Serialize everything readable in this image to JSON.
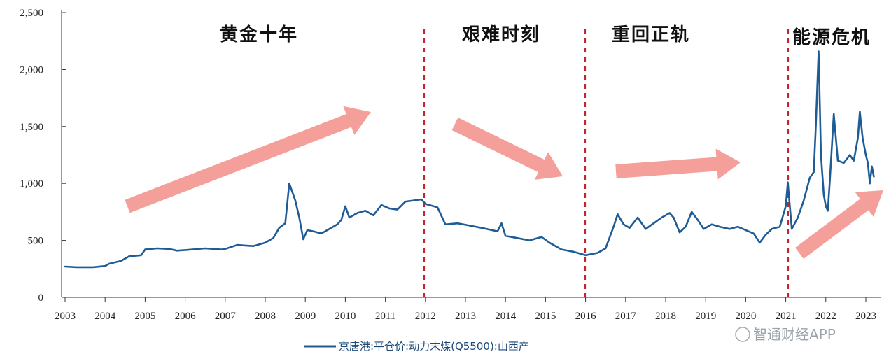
{
  "chart_data": {
    "type": "line",
    "x_ticks": [
      "2003",
      "2004",
      "2005",
      "2006",
      "2007",
      "2008",
      "2009",
      "2010",
      "2011",
      "2012",
      "2013",
      "2014",
      "2015",
      "2016",
      "2017",
      "2018",
      "2019",
      "2020",
      "2021",
      "2022",
      "2023"
    ],
    "y_ticks": [
      "0",
      "500",
      "1,000",
      "1,500",
      "2,000",
      "2,500"
    ],
    "ylim": [
      0,
      2500
    ],
    "xlim": [
      2003,
      2023.3
    ],
    "grid": false,
    "legend_position": "bottom-center",
    "colors": {
      "line": "#1f5c96",
      "divider": "#c0262c",
      "arrow": "#f49a95"
    },
    "period_dividers": [
      2012,
      2016,
      2021
    ],
    "period_labels": [
      "黄金十年",
      "艰难时刻",
      "重回正轨",
      "能源危机"
    ],
    "trend_arrows": [
      "up",
      "down",
      "up",
      "up"
    ],
    "series": [
      {
        "name": "京唐港:平仓价:动力末煤(Q5500):山西产",
        "points": [
          [
            2003.0,
            270
          ],
          [
            2003.3,
            265
          ],
          [
            2003.7,
            265
          ],
          [
            2004.0,
            275
          ],
          [
            2004.1,
            295
          ],
          [
            2004.4,
            320
          ],
          [
            2004.6,
            360
          ],
          [
            2004.9,
            370
          ],
          [
            2005.0,
            420
          ],
          [
            2005.3,
            430
          ],
          [
            2005.6,
            425
          ],
          [
            2005.8,
            410
          ],
          [
            2006.0,
            415
          ],
          [
            2006.5,
            430
          ],
          [
            2006.9,
            420
          ],
          [
            2007.0,
            425
          ],
          [
            2007.3,
            460
          ],
          [
            2007.5,
            455
          ],
          [
            2007.7,
            450
          ],
          [
            2008.0,
            480
          ],
          [
            2008.2,
            520
          ],
          [
            2008.35,
            610
          ],
          [
            2008.5,
            650
          ],
          [
            2008.6,
            1000
          ],
          [
            2008.75,
            850
          ],
          [
            2008.85,
            700
          ],
          [
            2008.95,
            510
          ],
          [
            2009.05,
            590
          ],
          [
            2009.2,
            580
          ],
          [
            2009.4,
            560
          ],
          [
            2009.6,
            600
          ],
          [
            2009.8,
            640
          ],
          [
            2009.9,
            680
          ],
          [
            2010.0,
            800
          ],
          [
            2010.1,
            700
          ],
          [
            2010.3,
            740
          ],
          [
            2010.5,
            760
          ],
          [
            2010.7,
            720
          ],
          [
            2010.9,
            810
          ],
          [
            2011.1,
            780
          ],
          [
            2011.3,
            770
          ],
          [
            2011.5,
            840
          ],
          [
            2011.7,
            850
          ],
          [
            2011.9,
            860
          ],
          [
            2012.0,
            820
          ],
          [
            2012.3,
            790
          ],
          [
            2012.5,
            640
          ],
          [
            2012.8,
            650
          ],
          [
            2013.1,
            630
          ],
          [
            2013.4,
            610
          ],
          [
            2013.8,
            580
          ],
          [
            2013.9,
            650
          ],
          [
            2014.0,
            540
          ],
          [
            2014.3,
            520
          ],
          [
            2014.6,
            500
          ],
          [
            2014.9,
            530
          ],
          [
            2015.1,
            480
          ],
          [
            2015.4,
            420
          ],
          [
            2015.7,
            400
          ],
          [
            2016.0,
            370
          ],
          [
            2016.3,
            390
          ],
          [
            2016.5,
            430
          ],
          [
            2016.7,
            620
          ],
          [
            2016.8,
            730
          ],
          [
            2016.95,
            640
          ],
          [
            2017.1,
            610
          ],
          [
            2017.3,
            700
          ],
          [
            2017.5,
            600
          ],
          [
            2017.7,
            650
          ],
          [
            2017.9,
            700
          ],
          [
            2018.1,
            740
          ],
          [
            2018.2,
            700
          ],
          [
            2018.35,
            570
          ],
          [
            2018.5,
            620
          ],
          [
            2018.65,
            750
          ],
          [
            2018.8,
            680
          ],
          [
            2018.95,
            600
          ],
          [
            2019.15,
            640
          ],
          [
            2019.35,
            620
          ],
          [
            2019.6,
            600
          ],
          [
            2019.8,
            620
          ],
          [
            2020.0,
            590
          ],
          [
            2020.2,
            560
          ],
          [
            2020.35,
            480
          ],
          [
            2020.5,
            550
          ],
          [
            2020.65,
            600
          ],
          [
            2020.85,
            620
          ],
          [
            2021.0,
            800
          ],
          [
            2021.05,
            1010
          ],
          [
            2021.15,
            600
          ],
          [
            2021.3,
            700
          ],
          [
            2021.45,
            850
          ],
          [
            2021.6,
            1050
          ],
          [
            2021.7,
            1100
          ],
          [
            2021.75,
            1500
          ],
          [
            2021.82,
            2160
          ],
          [
            2021.88,
            1250
          ],
          [
            2021.95,
            900
          ],
          [
            2022.0,
            800
          ],
          [
            2022.05,
            760
          ],
          [
            2022.1,
            1020
          ],
          [
            2022.2,
            1610
          ],
          [
            2022.3,
            1200
          ],
          [
            2022.45,
            1180
          ],
          [
            2022.6,
            1250
          ],
          [
            2022.7,
            1200
          ],
          [
            2022.8,
            1400
          ],
          [
            2022.85,
            1630
          ],
          [
            2022.92,
            1400
          ],
          [
            2023.0,
            1250
          ],
          [
            2023.05,
            1180
          ],
          [
            2023.1,
            1000
          ],
          [
            2023.15,
            1150
          ],
          [
            2023.2,
            1060
          ]
        ]
      }
    ]
  },
  "watermark": {
    "text": "智通财经APP"
  }
}
